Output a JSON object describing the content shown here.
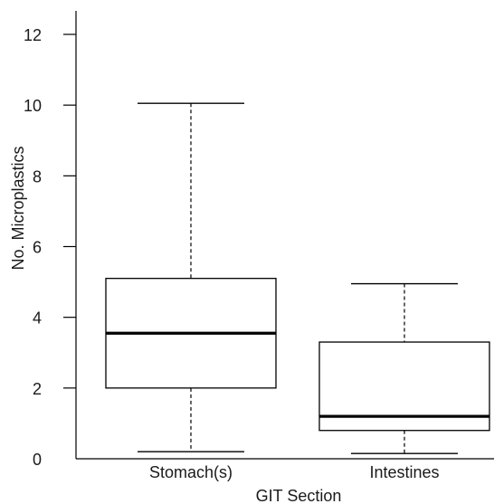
{
  "chart_data": {
    "type": "boxplot",
    "title": "",
    "xlabel": "GIT Section",
    "ylabel": "No. Microplastics",
    "ylim": [
      0,
      12
    ],
    "yticks": [
      0,
      2,
      4,
      6,
      8,
      10,
      12
    ],
    "categories": [
      "Stomach(s)",
      "Intestines"
    ],
    "boxes": [
      {
        "category": "Stomach(s)",
        "whisker_low": 0.2,
        "q1": 2.0,
        "median": 3.55,
        "q3": 5.1,
        "whisker_high": 10.05
      },
      {
        "category": "Intestines",
        "whisker_low": 0.15,
        "q1": 0.8,
        "median": 1.2,
        "q3": 3.3,
        "whisker_high": 4.95
      }
    ],
    "grid": false,
    "legend": "none",
    "colors": {
      "line": "#000000",
      "fill": "#ffffff"
    }
  }
}
